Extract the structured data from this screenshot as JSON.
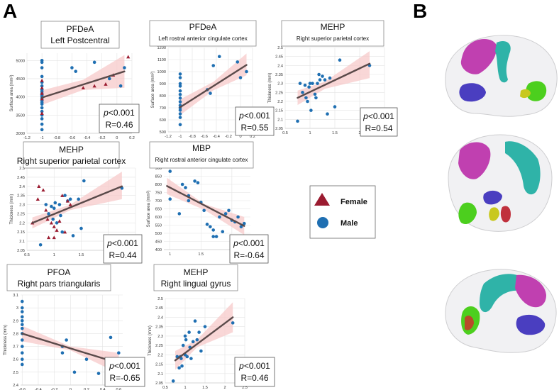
{
  "panel_labels": {
    "a": "A",
    "b": "B"
  },
  "legend": {
    "female": {
      "label": "Female",
      "color": "#9b1b30"
    },
    "male": {
      "label": "Male",
      "color": "#1f6fb2"
    }
  },
  "colors": {
    "fit_line": "#5a4a4a",
    "ci_band": "#f7c9c9"
  },
  "chart_data": [
    {
      "type": "scatter",
      "title": "PFDeA",
      "subtitle": "Left Postcentral",
      "title_style": "big",
      "ylabel": "Surface area (mm²)",
      "xlim": [
        -1.2,
        0.2
      ],
      "ylim": [
        3000,
        5200
      ],
      "xticks": [
        -1.2,
        -1,
        -0.8,
        -0.6,
        -0.4,
        -0.2,
        0,
        0.2
      ],
      "xtick_labels": [
        "-1.2",
        "-1",
        "-0.8",
        "-0.6",
        "-0.4",
        "-0.2",
        "0",
        "0.2"
      ],
      "yticks": [
        3000,
        3500,
        4000,
        4500,
        5000
      ],
      "ytick_labels": [
        "3000",
        "3500",
        "4000",
        "4500",
        "5000"
      ],
      "fit": [
        [
          -1.0,
          3980
        ],
        [
          0.1,
          4700
        ]
      ],
      "ci": [
        [
          -1.0,
          3780,
          4180
        ],
        [
          -0.45,
          4190,
          4470
        ],
        [
          0.1,
          4250,
          5150
        ]
      ],
      "p_prefix": "p",
      "p_value": "<0.001",
      "r_label": "R=0.46",
      "male": [
        [
          -1,
          5000
        ],
        [
          -1,
          4950
        ],
        [
          -1,
          4800
        ],
        [
          -1,
          4560
        ],
        [
          -1,
          4400
        ],
        [
          -1,
          4300
        ],
        [
          -1,
          4200
        ],
        [
          -1,
          4150
        ],
        [
          -1,
          4100
        ],
        [
          -1,
          4050
        ],
        [
          -1,
          4000
        ],
        [
          -1,
          3950
        ],
        [
          -1,
          3900
        ],
        [
          -1,
          3850
        ],
        [
          -1,
          3800
        ],
        [
          -1,
          3700
        ],
        [
          -1,
          3600
        ],
        [
          -1,
          3500
        ],
        [
          -1,
          3400
        ],
        [
          -1,
          3250
        ],
        [
          -1,
          3100
        ],
        [
          -0.6,
          4800
        ],
        [
          -0.55,
          4700
        ],
        [
          -0.3,
          4950
        ],
        [
          -0.1,
          4500
        ],
        [
          0.05,
          4300
        ],
        [
          0.1,
          4800
        ]
      ],
      "female": [
        [
          -1,
          4450
        ],
        [
          -1,
          4250
        ],
        [
          -1,
          4100
        ],
        [
          -1,
          3950
        ],
        [
          -1,
          3550
        ],
        [
          -0.45,
          4250
        ],
        [
          -0.3,
          4300
        ],
        [
          -0.2,
          3700
        ],
        [
          -0.15,
          4350
        ],
        [
          -0.05,
          4600
        ],
        [
          0.15,
          5100
        ]
      ]
    },
    {
      "type": "scatter",
      "title": "PFDeA",
      "subtitle": "Left rostral anterior cingulate cortex",
      "title_style": "small",
      "ylabel": "Surface area (mm²)",
      "xlim": [
        -1.2,
        0.2
      ],
      "ylim": [
        500,
        1200
      ],
      "xticks": [
        -1.2,
        -1,
        -0.8,
        -0.6,
        -0.4,
        -0.2,
        0,
        0.2
      ],
      "xtick_labels": [
        "-1.2",
        "-1",
        "-0.8",
        "-0.6",
        "-0.4",
        "-0.2",
        "0",
        "0.2"
      ],
      "yticks": [
        500,
        600,
        700,
        800,
        900,
        1000,
        1100,
        1200
      ],
      "ytick_labels": [
        "500",
        "600",
        "700",
        "800",
        "900",
        "1000",
        "1100",
        "1200"
      ],
      "fit": [
        [
          -1.0,
          705
        ],
        [
          0.1,
          1055
        ]
      ],
      "ci": [
        [
          -1.0,
          640,
          770
        ],
        [
          -0.45,
          845,
          915
        ],
        [
          0.1,
          970,
          1150
        ]
      ],
      "p_prefix": "p",
      "p_value": "<0.001",
      "r_label": "R=0.55",
      "male": [
        [
          -1,
          980
        ],
        [
          -1,
          950
        ],
        [
          -1,
          900
        ],
        [
          -1,
          880
        ],
        [
          -1,
          840
        ],
        [
          -1,
          810
        ],
        [
          -1,
          780
        ],
        [
          -1,
          750
        ],
        [
          -1,
          720
        ],
        [
          -1,
          700
        ],
        [
          -1,
          680
        ],
        [
          -1,
          650
        ],
        [
          -1,
          620
        ],
        [
          -1,
          560
        ],
        [
          -0.55,
          850
        ],
        [
          -0.5,
          820
        ],
        [
          -0.45,
          1050
        ],
        [
          -0.35,
          1125
        ],
        [
          -0.05,
          1080
        ],
        [
          0,
          950
        ],
        [
          0.1,
          1000
        ]
      ],
      "female": []
    },
    {
      "type": "scatter",
      "title": "MEHP",
      "subtitle": "Right superior parietal cortex",
      "title_style": "small",
      "ylabel": "Thickness (mm)",
      "xlim": [
        0.5,
        2.5
      ],
      "ylim": [
        2.05,
        2.5
      ],
      "xticks": [
        0.5,
        1,
        1.5,
        2,
        2.5
      ],
      "xtick_labels": [
        "0.5",
        "1",
        "1.5",
        "2",
        "2.5"
      ],
      "yticks": [
        2.05,
        2.1,
        2.15,
        2.2,
        2.25,
        2.3,
        2.35,
        2.4,
        2.45,
        2.5
      ],
      "ytick_labels": [
        "2.05",
        "2.1",
        "2.15",
        "2.2",
        "2.25",
        "2.3",
        "2.35",
        "2.4",
        "2.45",
        "2.5"
      ],
      "fit": [
        [
          0.75,
          2.22
        ],
        [
          2.2,
          2.41
        ]
      ],
      "ci": [
        [
          0.75,
          2.18,
          2.26
        ],
        [
          1.3,
          2.27,
          2.31
        ],
        [
          2.2,
          2.33,
          2.48
        ]
      ],
      "p_prefix": "p",
      "p_value": "<0.001",
      "r_label": "R=0.54",
      "male": [
        [
          0.75,
          2.09
        ],
        [
          0.8,
          2.3
        ],
        [
          0.85,
          2.25
        ],
        [
          0.9,
          2.29
        ],
        [
          0.92,
          2.22
        ],
        [
          0.95,
          2.2
        ],
        [
          0.98,
          2.28
        ],
        [
          1.0,
          2.3
        ],
        [
          1.02,
          2.15
        ],
        [
          1.05,
          2.3
        ],
        [
          1.1,
          2.24
        ],
        [
          1.12,
          2.22
        ],
        [
          1.15,
          2.3
        ],
        [
          1.18,
          2.35
        ],
        [
          1.2,
          2.32
        ],
        [
          1.25,
          2.34
        ],
        [
          1.3,
          2.32
        ],
        [
          1.35,
          2.13
        ],
        [
          1.4,
          2.33
        ],
        [
          1.5,
          2.17
        ],
        [
          1.6,
          2.43
        ],
        [
          2.2,
          2.4
        ]
      ],
      "female": []
    },
    {
      "type": "scatter",
      "title": "MEHP",
      "subtitle": "Right superior parietal cortex",
      "title_style": "big",
      "ylabel": "Thickness (mm)",
      "xlim": [
        0.5,
        2.5
      ],
      "ylim": [
        2.05,
        2.5
      ],
      "xticks": [
        0.5,
        1,
        1.5,
        2,
        2.5
      ],
      "xtick_labels": [
        "0.5",
        "1",
        "1.5",
        "2",
        "2.5"
      ],
      "yticks": [
        2.05,
        2.1,
        2.15,
        2.2,
        2.25,
        2.3,
        2.35,
        2.4,
        2.45,
        2.5
      ],
      "ytick_labels": [
        "2.05",
        "2.1",
        "2.15",
        "2.2",
        "2.25",
        "2.3",
        "2.35",
        "2.4",
        "2.45",
        "2.5"
      ],
      "fit": [
        [
          0.6,
          2.2
        ],
        [
          2.25,
          2.4
        ]
      ],
      "ci": [
        [
          0.6,
          2.17,
          2.23
        ],
        [
          1.3,
          2.27,
          2.3
        ],
        [
          2.25,
          2.33,
          2.48
        ]
      ],
      "p_prefix": "p",
      "p_value": "<0.001",
      "r_label": "R=0.44",
      "male": [
        [
          0.75,
          2.08
        ],
        [
          0.85,
          2.3
        ],
        [
          0.9,
          2.25
        ],
        [
          0.95,
          2.29
        ],
        [
          0.98,
          2.22
        ],
        [
          1.0,
          2.28
        ],
        [
          1.02,
          2.31
        ],
        [
          1.05,
          2.2
        ],
        [
          1.1,
          2.3
        ],
        [
          1.12,
          2.24
        ],
        [
          1.15,
          2.15
        ],
        [
          1.2,
          2.35
        ],
        [
          1.25,
          2.32
        ],
        [
          1.3,
          2.33
        ],
        [
          1.35,
          2.13
        ],
        [
          1.45,
          2.33
        ],
        [
          1.5,
          2.17
        ],
        [
          1.55,
          2.43
        ],
        [
          2.25,
          2.39
        ]
      ],
      "female": [
        [
          0.6,
          2.2
        ],
        [
          0.7,
          2.33
        ],
        [
          0.72,
          2.4
        ],
        [
          0.8,
          2.38
        ],
        [
          0.85,
          2.27
        ],
        [
          0.88,
          2.22
        ],
        [
          0.9,
          2.12
        ],
        [
          0.95,
          2.2
        ],
        [
          1.0,
          2.12
        ],
        [
          1.0,
          2.18
        ],
        [
          1.05,
          2.16
        ],
        [
          1.1,
          2.21
        ],
        [
          1.15,
          2.35
        ],
        [
          1.2,
          2.15
        ],
        [
          1.25,
          2.32
        ],
        [
          1.3,
          2.3
        ]
      ]
    },
    {
      "type": "scatter",
      "title": "MBP",
      "subtitle": "Right rostral anterior cingulate cortex",
      "title_style": "small",
      "ylabel": "Surface area (mm²)",
      "xlim": [
        0.9,
        2.3
      ],
      "ylim": [
        400,
        900
      ],
      "xticks": [
        1,
        1.5,
        2
      ],
      "xtick_labels": [
        "1",
        "1.5",
        "2"
      ],
      "yticks": [
        400,
        450,
        500,
        550,
        600,
        650,
        700,
        750,
        800,
        850,
        900
      ],
      "ytick_labels": [
        "400",
        "450",
        "500",
        "550",
        "600",
        "650",
        "700",
        "750",
        "800",
        "850",
        "900"
      ],
      "fit": [
        [
          0.95,
          790
        ],
        [
          2.2,
          545
        ]
      ],
      "ci": [
        [
          0.95,
          740,
          840
        ],
        [
          1.55,
          645,
          680
        ],
        [
          2.2,
          490,
          600
        ]
      ],
      "p_prefix": "p",
      "p_value": "<0.001",
      "r_label": "R=-0.64",
      "male": [
        [
          1.0,
          880
        ],
        [
          1.0,
          710
        ],
        [
          1.15,
          620
        ],
        [
          1.2,
          800
        ],
        [
          1.25,
          780
        ],
        [
          1.3,
          730
        ],
        [
          1.3,
          700
        ],
        [
          1.4,
          820
        ],
        [
          1.45,
          810
        ],
        [
          1.5,
          690
        ],
        [
          1.55,
          640
        ],
        [
          1.6,
          555
        ],
        [
          1.65,
          540
        ],
        [
          1.7,
          520
        ],
        [
          1.7,
          480
        ],
        [
          1.75,
          480
        ],
        [
          1.8,
          600
        ],
        [
          1.85,
          510
        ],
        [
          1.9,
          620
        ],
        [
          1.95,
          640
        ],
        [
          2.0,
          580
        ],
        [
          2.05,
          570
        ],
        [
          2.1,
          600
        ],
        [
          2.15,
          540
        ],
        [
          2.2,
          560
        ]
      ],
      "female": []
    },
    {
      "type": "scatter",
      "title": "PFOA",
      "subtitle": "Right pars triangularis",
      "title_style": "big",
      "ylabel": "Thickness (mm)",
      "xlim": [
        -0.62,
        0.65
      ],
      "ylim": [
        2.4,
        3.1
      ],
      "xticks": [
        -0.6,
        -0.4,
        -0.2,
        0,
        0.2,
        0.4,
        0.6
      ],
      "xtick_labels": [
        "-0.6",
        "-0.4",
        "-0.2",
        "0",
        "0.2",
        "0.4",
        "0.6"
      ],
      "yticks": [
        2.4,
        2.5,
        2.6,
        2.7,
        2.8,
        2.9,
        3.0,
        3.1
      ],
      "ytick_labels": [
        "2.4",
        "2.5",
        "2.6",
        "2.7",
        "2.8",
        "2.9",
        "3",
        "3.1"
      ],
      "fit": [
        [
          -0.6,
          2.8
        ],
        [
          0.6,
          2.57
        ]
      ],
      "ci": [
        [
          -0.6,
          2.74,
          2.86
        ],
        [
          0.0,
          2.67,
          2.7
        ],
        [
          0.6,
          2.49,
          2.65
        ]
      ],
      "p_prefix": "p",
      "p_value": "<0.001",
      "r_label": "R=-0.65",
      "male": [
        [
          -0.6,
          3.05
        ],
        [
          -0.6,
          3.0
        ],
        [
          -0.6,
          2.97
        ],
        [
          -0.6,
          2.93
        ],
        [
          -0.6,
          2.9
        ],
        [
          -0.6,
          2.87
        ],
        [
          -0.6,
          2.84
        ],
        [
          -0.6,
          2.8
        ],
        [
          -0.6,
          2.75
        ],
        [
          -0.6,
          2.7
        ],
        [
          -0.6,
          2.65
        ],
        [
          -0.6,
          2.6
        ],
        [
          -0.6,
          2.56
        ],
        [
          -0.1,
          2.65
        ],
        [
          -0.1,
          2.7
        ],
        [
          -0.05,
          2.75
        ],
        [
          0.05,
          2.5
        ],
        [
          0.2,
          2.6
        ],
        [
          0.35,
          2.49
        ],
        [
          0.45,
          2.55
        ],
        [
          0.5,
          2.77
        ],
        [
          0.55,
          2.6
        ],
        [
          0.6,
          2.65
        ]
      ],
      "female": []
    },
    {
      "type": "scatter",
      "title": "MEHP",
      "subtitle": "Right lingual gyrus",
      "title_style": "big",
      "ylabel": "Thickness (mm)",
      "xlim": [
        0.5,
        2.5
      ],
      "ylim": [
        2.05,
        2.5
      ],
      "xticks": [
        0.5,
        1,
        1.5,
        2,
        2.5
      ],
      "xtick_labels": [
        "0.5",
        "1",
        "1.5",
        "2",
        "2.5"
      ],
      "yticks": [
        2.05,
        2.1,
        2.15,
        2.2,
        2.25,
        2.3,
        2.35,
        2.4,
        2.45,
        2.5
      ],
      "ytick_labels": [
        "2.05",
        "2.1",
        "2.15",
        "2.2",
        "2.25",
        "2.3",
        "2.35",
        "2.4",
        "2.45",
        "2.5"
      ],
      "fit": [
        [
          0.75,
          2.17
        ],
        [
          2.2,
          2.4
        ]
      ],
      "ci": [
        [
          0.75,
          2.12,
          2.22
        ],
        [
          1.3,
          2.24,
          2.28
        ],
        [
          2.2,
          2.32,
          2.48
        ]
      ],
      "p_prefix": "p",
      "p_value": "<0.001",
      "r_label": "R=0.46",
      "male": [
        [
          0.7,
          2.06
        ],
        [
          0.8,
          2.19
        ],
        [
          0.85,
          2.13
        ],
        [
          0.88,
          2.19
        ],
        [
          0.9,
          2.18
        ],
        [
          0.92,
          2.14
        ],
        [
          0.95,
          2.25
        ],
        [
          1.0,
          2.3
        ],
        [
          1.0,
          2.2
        ],
        [
          1.02,
          2.28
        ],
        [
          1.05,
          2.19
        ],
        [
          1.1,
          2.32
        ],
        [
          1.12,
          2.24
        ],
        [
          1.15,
          2.18
        ],
        [
          1.2,
          2.27
        ],
        [
          1.25,
          2.38
        ],
        [
          1.3,
          2.28
        ],
        [
          1.35,
          2.32
        ],
        [
          1.4,
          2.22
        ],
        [
          1.5,
          2.35
        ],
        [
          2.2,
          2.37
        ]
      ],
      "female": []
    }
  ]
}
